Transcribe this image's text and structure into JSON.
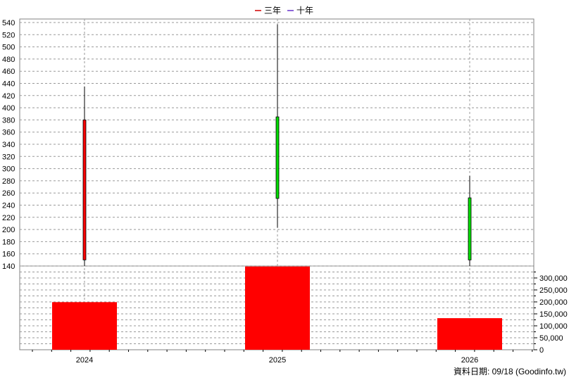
{
  "legend": {
    "items": [
      {
        "label": "三年",
        "color": "#d00000"
      },
      {
        "label": "十年",
        "color": "#6633cc"
      }
    ]
  },
  "footer": {
    "credit": "資料日期: 09/18  (Goodinfo.tw)"
  },
  "colors": {
    "up": "#ff0000",
    "down": "#00dd00",
    "volume": "#ff0000",
    "grid": "#999999",
    "wick": "#000000"
  },
  "chart_data": [
    {
      "type": "candlestick",
      "categories": [
        "2024",
        "2025",
        "2026"
      ],
      "ylim": [
        140,
        540
      ],
      "yticks": [
        140,
        160,
        180,
        200,
        220,
        240,
        260,
        280,
        300,
        320,
        340,
        360,
        380,
        400,
        420,
        440,
        460,
        480,
        500,
        520,
        540
      ],
      "series": [
        {
          "category": "2024",
          "open": 150,
          "close": 380,
          "high": 435,
          "low": 140,
          "direction": "up"
        },
        {
          "category": "2025",
          "open": 385,
          "close": 251,
          "high": 537,
          "low": 203,
          "direction": "down"
        },
        {
          "category": "2026",
          "open": 252,
          "close": 150,
          "high": 288,
          "low": 140,
          "direction": "down"
        }
      ],
      "grid": true
    },
    {
      "type": "bar",
      "categories": [
        "2024",
        "2025",
        "2026"
      ],
      "values": [
        199000,
        348000,
        132000
      ],
      "ylim": [
        0,
        350000
      ],
      "yticks": [
        0,
        50000,
        100000,
        150000,
        200000,
        250000,
        300000
      ],
      "ytick_labels": [
        "0",
        "50,000",
        "100,000",
        "150,000",
        "200,000",
        "250,000",
        "300,000"
      ],
      "grid": true
    }
  ]
}
